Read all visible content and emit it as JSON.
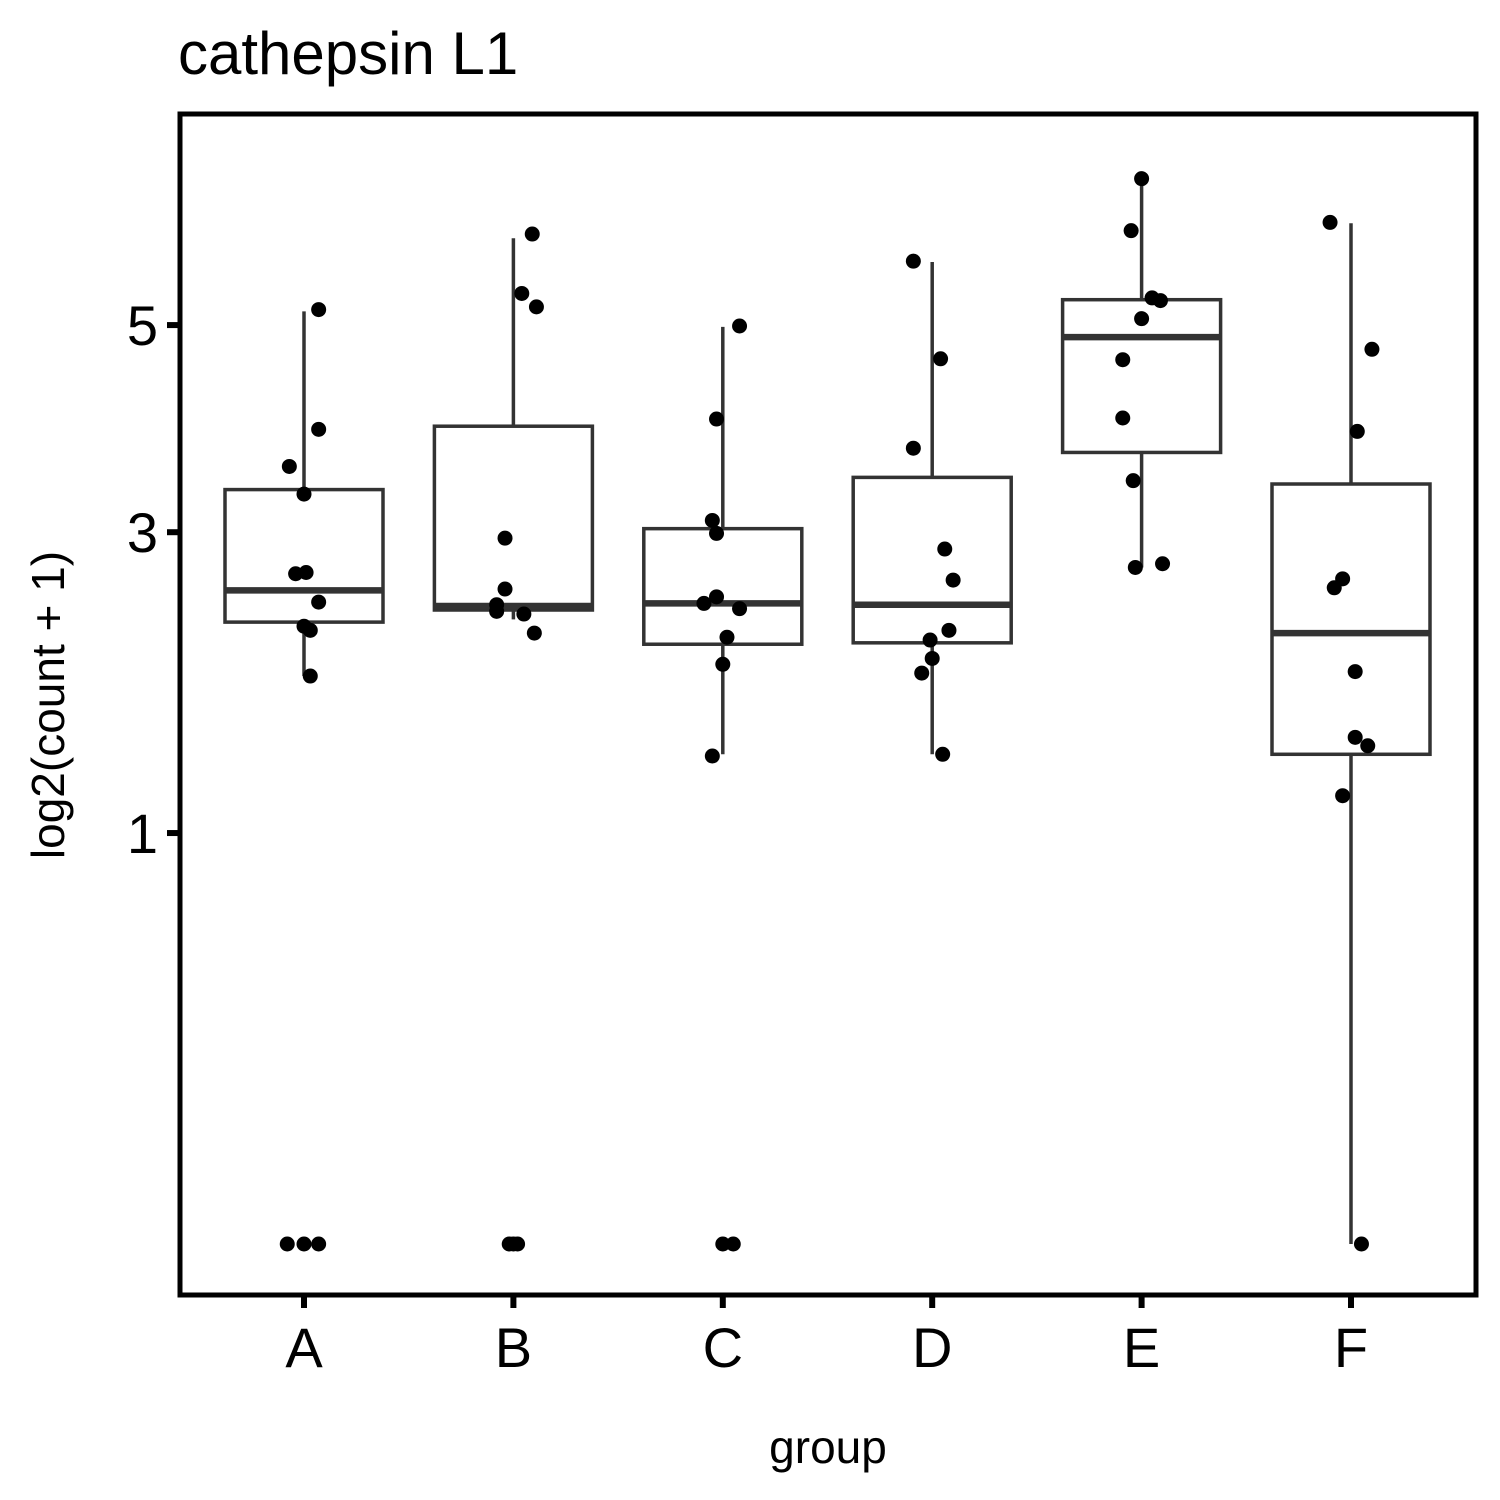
{
  "chart_data": {
    "type": "boxplot",
    "title": "cathepsin L1",
    "xlabel": "group",
    "ylabel": "log2(count + 1)",
    "y_scale": "sqrt",
    "y_ticks": [
      1,
      3,
      5
    ],
    "ylim": [
      0,
      7.23
    ],
    "grid": false,
    "categories": [
      "A",
      "B",
      "C",
      "D",
      "E",
      "F"
    ],
    "colors": {
      "box_line": "#333333",
      "points": "#000000",
      "panel_border": "#000000"
    },
    "boxes": [
      {
        "group": "A",
        "whisker_low": 1.91,
        "q1": 2.29,
        "median": 2.53,
        "q3": 3.37,
        "whisker_high": 5.15
      },
      {
        "group": "B",
        "whisker_low": 2.31,
        "q1": 2.38,
        "median": 2.41,
        "q3": 3.96,
        "whisker_high": 5.99
      },
      {
        "group": "C",
        "whisker_low": 1.42,
        "q1": 2.13,
        "median": 2.43,
        "q3": 3.03,
        "whisker_high": 4.98
      },
      {
        "group": "D",
        "whisker_low": 1.42,
        "q1": 2.14,
        "median": 2.42,
        "q3": 3.48,
        "whisker_high": 5.71
      },
      {
        "group": "E",
        "whisker_low": 2.71,
        "q1": 3.71,
        "median": 4.87,
        "q3": 5.28,
        "whisker_high": 6.72
      },
      {
        "group": "F",
        "whisker_low": 0,
        "q1": 1.42,
        "median": 2.21,
        "q3": 3.42,
        "whisker_high": 6.17
      }
    ],
    "points": [
      {
        "group": "A",
        "values": [
          5.17,
          3.93,
          3.58,
          3.33,
          2.66,
          2.67,
          2.44,
          2.26,
          2.23,
          1.91,
          0,
          0,
          0
        ],
        "offsets": [
          0.07,
          0.07,
          -0.07,
          0.0,
          -0.04,
          0.01,
          0.07,
          0.0,
          0.03,
          0.03,
          -0.08,
          0.0,
          0.07
        ]
      },
      {
        "group": "B",
        "values": [
          6.04,
          5.35,
          5.2,
          2.95,
          2.54,
          2.42,
          2.37,
          2.35,
          2.21,
          0,
          0,
          0
        ],
        "offsets": [
          0.09,
          0.04,
          0.11,
          -0.04,
          -0.04,
          -0.08,
          -0.08,
          0.05,
          0.1,
          -0.02,
          0.0,
          0.02
        ]
      },
      {
        "group": "C",
        "values": [
          4.99,
          4.03,
          3.1,
          2.99,
          2.48,
          2.43,
          2.39,
          2.18,
          1.99,
          1.41,
          0,
          0
        ],
        "offsets": [
          0.08,
          -0.03,
          -0.05,
          -0.03,
          -0.03,
          -0.09,
          0.08,
          0.02,
          0.0,
          -0.05,
          0.0,
          0.05
        ]
      },
      {
        "group": "D",
        "values": [
          5.72,
          4.64,
          3.75,
          2.86,
          2.61,
          2.23,
          2.16,
          2.03,
          1.93,
          1.42
        ],
        "offsets": [
          -0.09,
          0.04,
          -0.09,
          0.06,
          0.1,
          0.08,
          -0.01,
          0.0,
          -0.05,
          0.05
        ]
      },
      {
        "group": "E",
        "values": [
          6.72,
          6.08,
          5.3,
          5.27,
          5.07,
          4.63,
          4.04,
          3.45,
          2.74,
          2.71
        ],
        "offsets": [
          0.0,
          -0.05,
          0.05,
          0.09,
          0.0,
          -0.09,
          -0.09,
          -0.04,
          0.1,
          -0.03
        ]
      },
      {
        "group": "F",
        "values": [
          6.18,
          4.74,
          3.91,
          2.62,
          2.55,
          1.94,
          1.52,
          1.47,
          1.19,
          0
        ],
        "offsets": [
          -0.1,
          0.1,
          0.03,
          -0.04,
          -0.08,
          0.02,
          0.02,
          0.08,
          -0.04,
          0.05
        ]
      }
    ]
  }
}
